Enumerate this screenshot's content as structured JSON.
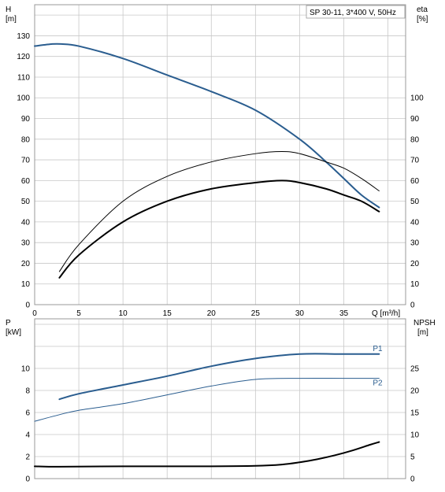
{
  "chart_data": [
    {
      "type": "line",
      "title": "SP 30-11, 3*400 V, 50Hz",
      "xlabel": "Q [m³/h]",
      "xlim": [
        0,
        42
      ],
      "xticks": [
        0,
        5,
        10,
        15,
        20,
        25,
        30,
        35
      ],
      "grid": true,
      "y_left": {
        "label": "H",
        "unit": "[m]",
        "lim": [
          0,
          145
        ],
        "ticks": [
          0,
          10,
          20,
          30,
          40,
          50,
          60,
          70,
          80,
          90,
          100,
          110,
          120,
          130
        ]
      },
      "y_right": {
        "label": "eta",
        "unit": "[%]",
        "lim": [
          0,
          145
        ],
        "ticks": [
          0,
          10,
          20,
          30,
          40,
          50,
          60,
          70,
          80,
          90,
          100
        ]
      },
      "series": [
        {
          "axis": "left",
          "color": "#2a5d8f",
          "width": 2,
          "x": [
            0,
            2,
            3,
            5,
            10,
            15,
            20,
            25,
            30,
            33,
            35,
            37,
            39
          ],
          "y": [
            125,
            126,
            126,
            125,
            119,
            111,
            103,
            94,
            80,
            69,
            61,
            53,
            47
          ]
        },
        {
          "axis": "right",
          "color": "#000000",
          "width": 1,
          "x": [
            2.8,
            5,
            10,
            15,
            20,
            25,
            28,
            30,
            33,
            35,
            37,
            39
          ],
          "y": [
            16,
            29,
            50,
            62,
            69,
            73,
            74,
            73,
            69,
            66,
            61,
            55
          ]
        },
        {
          "axis": "right",
          "color": "#000000",
          "width": 2,
          "x": [
            2.8,
            5,
            10,
            15,
            20,
            25,
            28,
            30,
            33,
            35,
            37,
            39
          ],
          "y": [
            13,
            24,
            40,
            50,
            56,
            59,
            60,
            59,
            56,
            53,
            50,
            45
          ]
        }
      ]
    },
    {
      "type": "line",
      "xlim": [
        0,
        42
      ],
      "xticks": [
        0,
        5,
        10,
        15,
        20,
        25,
        30,
        35
      ],
      "grid": true,
      "y_left": {
        "label": "P",
        "unit": "[kW]",
        "lim": [
          0,
          14.5
        ],
        "ticks": [
          0,
          2,
          4,
          6,
          8,
          10
        ]
      },
      "y_right": {
        "label": "NPSH",
        "unit": "[m]",
        "lim": [
          0,
          36.25
        ],
        "ticks": [
          0,
          5,
          10,
          15,
          20,
          25
        ]
      },
      "series": [
        {
          "name": "P1",
          "axis": "left",
          "color": "#2a5d8f",
          "width": 2,
          "x": [
            2.8,
            5,
            10,
            15,
            20,
            25,
            30,
            35,
            39
          ],
          "y": [
            7.2,
            7.7,
            8.5,
            9.3,
            10.2,
            10.9,
            11.3,
            11.3,
            11.3
          ]
        },
        {
          "name": "P2",
          "axis": "left",
          "color": "#2a5d8f",
          "width": 1,
          "x": [
            0,
            2.8,
            5,
            10,
            15,
            20,
            25,
            30,
            35,
            39
          ],
          "y": [
            5.2,
            5.8,
            6.2,
            6.8,
            7.6,
            8.4,
            9.0,
            9.1,
            9.1,
            9.1
          ]
        },
        {
          "axis": "right",
          "color": "#000000",
          "width": 2,
          "x": [
            0,
            2.8,
            10,
            20,
            25,
            28,
            30,
            32,
            34,
            36,
            38,
            39
          ],
          "y": [
            2.8,
            2.7,
            2.8,
            2.8,
            2.9,
            3.2,
            3.7,
            4.4,
            5.3,
            6.4,
            7.7,
            8.3
          ]
        }
      ]
    }
  ]
}
